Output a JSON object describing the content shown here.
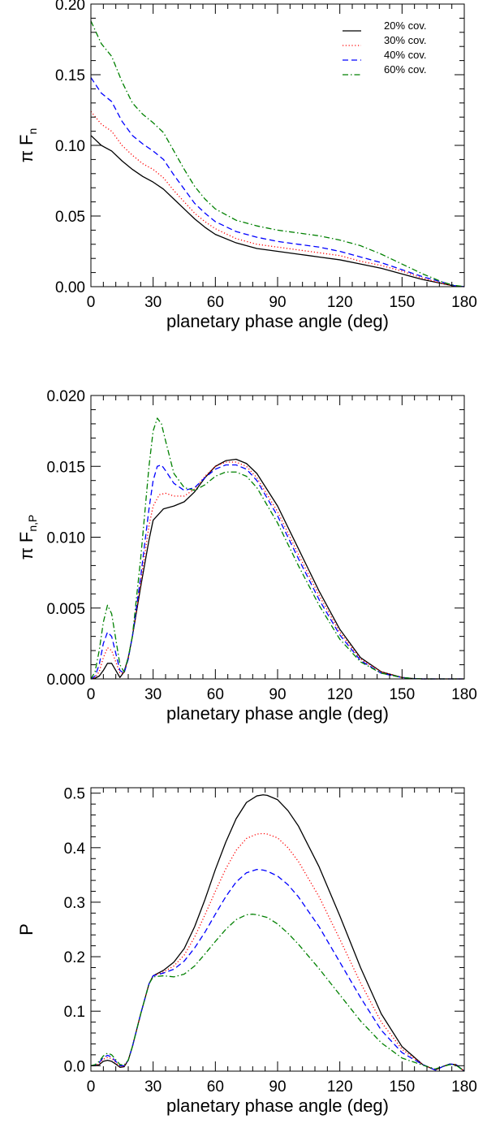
{
  "chart_data": [
    {
      "type": "line",
      "xlabel": "planetary phase angle (deg)",
      "ylabel": "π F",
      "ylabel_sub": "n",
      "xlim": [
        0,
        180
      ],
      "ylim": [
        0,
        0.2
      ],
      "xticks": [
        0,
        30,
        60,
        90,
        120,
        150,
        180
      ],
      "yticks": [
        0.0,
        0.05,
        0.1,
        0.15,
        0.2
      ],
      "ytick_labels": [
        "0.00",
        "0.05",
        "0.10",
        "0.15",
        "0.20"
      ],
      "legend": "top-right",
      "series": [
        {
          "name": "20% cov.",
          "color": "#000000",
          "dash": "solid",
          "x": [
            0,
            5,
            10,
            15,
            20,
            25,
            30,
            35,
            40,
            45,
            50,
            55,
            60,
            70,
            80,
            90,
            100,
            110,
            120,
            130,
            140,
            150,
            160,
            170,
            175,
            180
          ],
          "y": [
            0.107,
            0.1,
            0.096,
            0.089,
            0.083,
            0.078,
            0.074,
            0.069,
            0.062,
            0.055,
            0.048,
            0.042,
            0.037,
            0.031,
            0.027,
            0.025,
            0.023,
            0.021,
            0.019,
            0.016,
            0.013,
            0.009,
            0.005,
            0.002,
            0.0005,
            0.0
          ]
        },
        {
          "name": "30% cov.",
          "color": "#ff0000",
          "dash": "dotted",
          "x": [
            0,
            5,
            10,
            15,
            20,
            25,
            30,
            35,
            40,
            45,
            50,
            55,
            60,
            70,
            80,
            90,
            100,
            110,
            120,
            130,
            140,
            150,
            160,
            170,
            175,
            180
          ],
          "y": [
            0.124,
            0.115,
            0.11,
            0.1,
            0.093,
            0.087,
            0.083,
            0.077,
            0.068,
            0.06,
            0.052,
            0.046,
            0.041,
            0.034,
            0.03,
            0.028,
            0.026,
            0.024,
            0.022,
            0.018,
            0.015,
            0.011,
            0.006,
            0.002,
            0.0006,
            0.0
          ]
        },
        {
          "name": "40% cov.",
          "color": "#0000ff",
          "dash": "dashed",
          "x": [
            0,
            5,
            10,
            15,
            20,
            25,
            30,
            35,
            40,
            45,
            50,
            55,
            60,
            70,
            80,
            90,
            100,
            110,
            120,
            130,
            140,
            150,
            160,
            170,
            175,
            180
          ],
          "y": [
            0.148,
            0.137,
            0.131,
            0.117,
            0.107,
            0.101,
            0.096,
            0.09,
            0.079,
            0.069,
            0.059,
            0.052,
            0.046,
            0.039,
            0.035,
            0.032,
            0.03,
            0.028,
            0.025,
            0.021,
            0.017,
            0.012,
            0.007,
            0.003,
            0.0008,
            0.0
          ]
        },
        {
          "name": "60% cov.",
          "color": "#008000",
          "dash": "dashdot",
          "x": [
            0,
            5,
            10,
            15,
            20,
            25,
            30,
            35,
            40,
            45,
            50,
            55,
            60,
            70,
            80,
            90,
            100,
            110,
            120,
            130,
            140,
            150,
            160,
            170,
            175,
            180
          ],
          "y": [
            0.188,
            0.172,
            0.163,
            0.145,
            0.13,
            0.122,
            0.116,
            0.109,
            0.096,
            0.083,
            0.071,
            0.062,
            0.055,
            0.047,
            0.043,
            0.04,
            0.038,
            0.036,
            0.033,
            0.029,
            0.023,
            0.016,
            0.009,
            0.003,
            0.001,
            0.0
          ]
        }
      ]
    },
    {
      "type": "line",
      "xlabel": "planetary phase angle (deg)",
      "ylabel": "π F",
      "ylabel_sub": "n,P",
      "xlim": [
        0,
        180
      ],
      "ylim": [
        0,
        0.02
      ],
      "xticks": [
        0,
        30,
        60,
        90,
        120,
        150,
        180
      ],
      "yticks": [
        0.0,
        0.005,
        0.01,
        0.015,
        0.02
      ],
      "ytick_labels": [
        "0.000",
        "0.005",
        "0.010",
        "0.015",
        "0.020"
      ],
      "series": [
        {
          "name": "20% cov.",
          "color": "#000000",
          "dash": "solid",
          "x": [
            0,
            2,
            4,
            6,
            8,
            10,
            12,
            14,
            16,
            18,
            20,
            24,
            28,
            30,
            35,
            40,
            45,
            50,
            55,
            60,
            65,
            70,
            75,
            80,
            90,
            100,
            110,
            120,
            130,
            140,
            150,
            155,
            160,
            170,
            180
          ],
          "y": [
            0.0,
            5e-05,
            0.0002,
            0.0006,
            0.0011,
            0.0011,
            0.0006,
            0.0001,
            0.0005,
            0.0015,
            0.003,
            0.0065,
            0.0098,
            0.0112,
            0.012,
            0.0122,
            0.0125,
            0.0132,
            0.0142,
            0.015,
            0.0154,
            0.0155,
            0.0152,
            0.0145,
            0.0122,
            0.0092,
            0.0062,
            0.0035,
            0.0015,
            0.0005,
            0.0001,
            3e-05,
            0.0,
            0.0,
            0.0
          ]
        },
        {
          "name": "30% cov.",
          "color": "#ff0000",
          "dash": "dotted",
          "x": [
            0,
            2,
            4,
            6,
            8,
            10,
            12,
            14,
            16,
            18,
            20,
            24,
            28,
            30,
            33,
            36,
            40,
            45,
            50,
            55,
            60,
            65,
            70,
            75,
            80,
            90,
            100,
            110,
            120,
            130,
            140,
            150,
            155,
            160,
            170,
            180
          ],
          "y": [
            0.0,
            0.0001,
            0.0005,
            0.0015,
            0.0022,
            0.002,
            0.0012,
            0.0004,
            0.0004,
            0.0014,
            0.003,
            0.0068,
            0.0108,
            0.0122,
            0.013,
            0.0131,
            0.0129,
            0.0129,
            0.0134,
            0.0143,
            0.015,
            0.0153,
            0.0153,
            0.015,
            0.0142,
            0.0118,
            0.0088,
            0.0059,
            0.0033,
            0.0014,
            0.0005,
            0.0001,
            3e-05,
            0.0,
            0.0,
            0.0
          ]
        },
        {
          "name": "40% cov.",
          "color": "#0000ff",
          "dash": "dashed",
          "x": [
            0,
            2,
            4,
            6,
            8,
            10,
            12,
            14,
            16,
            18,
            20,
            24,
            28,
            30,
            32,
            34,
            36,
            40,
            45,
            50,
            55,
            60,
            65,
            70,
            75,
            80,
            90,
            100,
            110,
            120,
            130,
            140,
            150,
            155,
            160,
            170,
            180
          ],
          "y": [
            0.0,
            0.0002,
            0.001,
            0.0025,
            0.0033,
            0.003,
            0.0018,
            0.0006,
            0.0004,
            0.0014,
            0.003,
            0.0072,
            0.012,
            0.014,
            0.015,
            0.0151,
            0.0147,
            0.0138,
            0.0133,
            0.0135,
            0.0142,
            0.0148,
            0.0151,
            0.0151,
            0.0148,
            0.014,
            0.0115,
            0.0085,
            0.0056,
            0.0031,
            0.0013,
            0.0004,
            0.0001,
            3e-05,
            0.0,
            0.0,
            0.0
          ]
        },
        {
          "name": "60% cov.",
          "color": "#008000",
          "dash": "dashdot",
          "x": [
            0,
            2,
            4,
            6,
            8,
            10,
            12,
            14,
            16,
            18,
            20,
            24,
            28,
            30,
            32,
            34,
            36,
            40,
            45,
            50,
            55,
            60,
            65,
            70,
            75,
            80,
            90,
            100,
            110,
            120,
            130,
            140,
            150,
            155,
            160,
            170,
            180
          ],
          "y": [
            0.0,
            0.0005,
            0.002,
            0.004,
            0.0052,
            0.0046,
            0.0028,
            0.001,
            0.0005,
            0.0015,
            0.003,
            0.0085,
            0.015,
            0.0175,
            0.0184,
            0.018,
            0.0168,
            0.0145,
            0.0135,
            0.0133,
            0.0137,
            0.0143,
            0.0146,
            0.0146,
            0.0143,
            0.0135,
            0.011,
            0.008,
            0.0052,
            0.0028,
            0.0012,
            0.0004,
            0.0001,
            3e-05,
            0.0,
            0.0,
            0.0
          ]
        }
      ]
    },
    {
      "type": "line",
      "xlabel": "planetary phase angle (deg)",
      "ylabel": "P",
      "ylabel_sub": "",
      "xlim": [
        0,
        180
      ],
      "ylim": [
        -0.01,
        0.51
      ],
      "xticks": [
        0,
        30,
        60,
        90,
        120,
        150,
        180
      ],
      "yticks": [
        0.0,
        0.1,
        0.2,
        0.3,
        0.4,
        0.5
      ],
      "ytick_labels": [
        "0.0",
        "0.1",
        "0.2",
        "0.3",
        "0.4",
        "0.5"
      ],
      "series": [
        {
          "name": "20% cov.",
          "color": "#000000",
          "dash": "solid",
          "x": [
            0,
            2,
            4,
            6,
            8,
            10,
            12,
            14,
            16,
            18,
            20,
            24,
            28,
            30,
            35,
            40,
            45,
            50,
            55,
            60,
            65,
            70,
            75,
            80,
            83,
            85,
            90,
            95,
            100,
            110,
            120,
            130,
            140,
            150,
            160,
            166,
            170,
            173,
            176,
            180
          ],
          "y": [
            0.0,
            0.0,
            0.002,
            0.008,
            0.01,
            0.008,
            0.003,
            -0.003,
            -0.002,
            0.01,
            0.035,
            0.095,
            0.15,
            0.165,
            0.175,
            0.19,
            0.215,
            0.255,
            0.305,
            0.36,
            0.41,
            0.453,
            0.483,
            0.495,
            0.497,
            0.496,
            0.488,
            0.468,
            0.44,
            0.365,
            0.275,
            0.18,
            0.095,
            0.035,
            0.002,
            -0.008,
            -0.001,
            0.003,
            0.002,
            -0.01
          ]
        },
        {
          "name": "30% cov.",
          "color": "#ff0000",
          "dash": "dotted",
          "x": [
            0,
            2,
            4,
            6,
            8,
            10,
            12,
            14,
            16,
            18,
            20,
            24,
            28,
            30,
            35,
            40,
            45,
            50,
            55,
            60,
            65,
            70,
            75,
            80,
            83,
            85,
            90,
            95,
            100,
            110,
            120,
            130,
            140,
            150,
            160,
            166,
            170,
            173,
            176,
            180
          ],
          "y": [
            0.0,
            0.0,
            0.004,
            0.012,
            0.015,
            0.013,
            0.006,
            -0.002,
            -0.001,
            0.01,
            0.035,
            0.095,
            0.15,
            0.165,
            0.172,
            0.183,
            0.203,
            0.236,
            0.277,
            0.32,
            0.361,
            0.395,
            0.417,
            0.425,
            0.426,
            0.425,
            0.418,
            0.4,
            0.375,
            0.31,
            0.232,
            0.152,
            0.08,
            0.03,
            0.002,
            -0.008,
            -0.001,
            0.003,
            0.002,
            -0.01
          ]
        },
        {
          "name": "40% cov.",
          "color": "#0000ff",
          "dash": "dashed",
          "x": [
            0,
            2,
            4,
            6,
            8,
            10,
            12,
            14,
            16,
            18,
            20,
            24,
            28,
            30,
            35,
            40,
            45,
            50,
            55,
            60,
            65,
            70,
            75,
            80,
            83,
            85,
            90,
            95,
            100,
            110,
            120,
            130,
            140,
            150,
            160,
            166,
            170,
            173,
            176,
            180
          ],
          "y": [
            0.0,
            0.001,
            0.006,
            0.015,
            0.019,
            0.016,
            0.008,
            0.0,
            0.0,
            0.01,
            0.035,
            0.095,
            0.15,
            0.165,
            0.17,
            0.177,
            0.192,
            0.216,
            0.245,
            0.278,
            0.31,
            0.337,
            0.354,
            0.36,
            0.359,
            0.357,
            0.348,
            0.332,
            0.31,
            0.255,
            0.19,
            0.125,
            0.065,
            0.024,
            0.002,
            -0.008,
            -0.001,
            0.003,
            0.002,
            -0.01
          ]
        },
        {
          "name": "60% cov.",
          "color": "#008000",
          "dash": "dashdot",
          "x": [
            0,
            2,
            4,
            6,
            8,
            10,
            12,
            14,
            16,
            18,
            20,
            24,
            28,
            30,
            35,
            40,
            45,
            50,
            55,
            60,
            65,
            70,
            75,
            78,
            80,
            85,
            90,
            95,
            100,
            110,
            120,
            130,
            140,
            150,
            160,
            166,
            170,
            173,
            176,
            180
          ],
          "y": [
            0.0,
            0.002,
            0.008,
            0.018,
            0.023,
            0.02,
            0.011,
            0.002,
            0.001,
            0.01,
            0.035,
            0.095,
            0.15,
            0.163,
            0.165,
            0.163,
            0.168,
            0.183,
            0.205,
            0.228,
            0.25,
            0.268,
            0.277,
            0.278,
            0.277,
            0.272,
            0.26,
            0.243,
            0.223,
            0.178,
            0.13,
            0.082,
            0.042,
            0.014,
            0.001,
            -0.006,
            -0.001,
            0.002,
            0.001,
            -0.01
          ]
        }
      ]
    }
  ]
}
